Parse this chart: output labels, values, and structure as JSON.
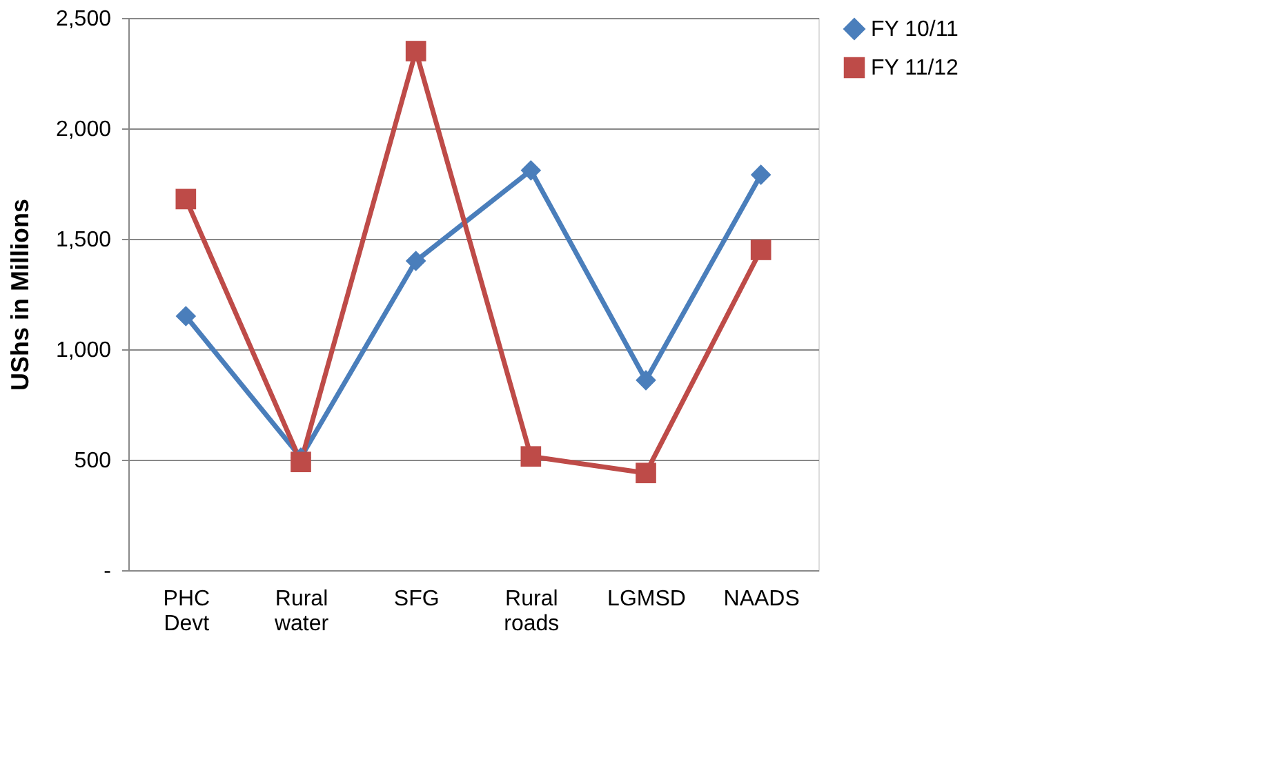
{
  "chart_data": {
    "type": "line",
    "ylabel": "UShs in Millions",
    "categories": [
      "PHC Devt",
      "Rural water",
      "SFG",
      "Rural roads",
      "LGMSD",
      "NAADS"
    ],
    "series": [
      {
        "name": "FY  10/11",
        "color": "#4a7ebb",
        "marker": "diamond",
        "values": [
          1150,
          510,
          1400,
          1810,
          860,
          1790
        ]
      },
      {
        "name": "FY 11/12",
        "color": "#be4b48",
        "marker": "square",
        "values": [
          1680,
          490,
          2350,
          515,
          440,
          1450
        ]
      }
    ],
    "ylim": [
      0,
      2500
    ],
    "yticks": [
      {
        "value": 0,
        "label": "-"
      },
      500,
      {
        "value": 1000,
        "label": "1,000"
      },
      {
        "value": 1500,
        "label": "1,500"
      },
      {
        "value": 2000,
        "label": "2,000"
      },
      {
        "value": 2500,
        "label": "2,500"
      }
    ],
    "grid": "y",
    "legend": "right",
    "line_style": "solid"
  }
}
